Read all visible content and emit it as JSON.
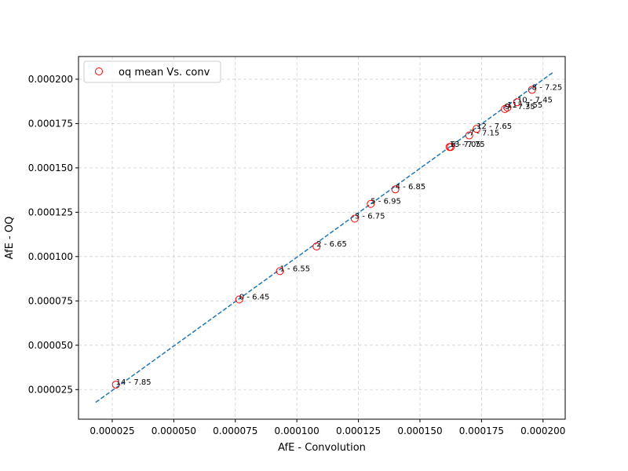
{
  "chart_data": {
    "type": "scatter",
    "xlabel": "AfE - Convolution",
    "ylabel": "AfE - OQ",
    "xlim": [
      1.13e-05,
      0.000209
    ],
    "ylim": [
      8.3e-06,
      0.0002128
    ],
    "xticks": [
      "0.000025",
      "0.000050",
      "0.000075",
      "0.000100",
      "0.000125",
      "0.000150",
      "0.000175",
      "0.000200"
    ],
    "xtick_values": [
      2.5e-05,
      5e-05,
      7.5e-05,
      0.0001,
      0.000125,
      0.00015,
      0.000175,
      0.0002
    ],
    "yticks": [
      "0.000025",
      "0.000050",
      "0.000075",
      "0.000100",
      "0.000125",
      "0.000150",
      "0.000175",
      "0.000200"
    ],
    "ytick_values": [
      2.5e-05,
      5e-05,
      7.5e-05,
      0.0001,
      0.000125,
      0.00015,
      0.000175,
      0.0002
    ],
    "grid": true,
    "legend_position": "top-left",
    "series": [
      {
        "name": "oq mean Vs. conv",
        "marker": "open-circle",
        "color": "#ff0000",
        "points": [
          {
            "x": 7.66e-05,
            "y": 7.58e-05,
            "label": "0 - 6.45"
          },
          {
            "x": 9.31e-05,
            "y": 9.18e-05,
            "label": "1 - 6.55"
          },
          {
            "x": 0.000108,
            "y": 0.0001057,
            "label": "2 - 6.65"
          },
          {
            "x": 0.0001235,
            "y": 0.0001214,
            "label": "3 - 6.75"
          },
          {
            "x": 0.00014,
            "y": 0.0001379,
            "label": "4 - 6.85"
          },
          {
            "x": 0.00013,
            "y": 0.0001297,
            "label": "5 - 6.95"
          },
          {
            "x": 0.0001625,
            "y": 0.0001618,
            "label": "6 - 7.05"
          },
          {
            "x": 0.00017,
            "y": 0.0001683,
            "label": "7 - 7.15"
          },
          {
            "x": 0.0001955,
            "y": 0.000194,
            "label": "8 - 7.25"
          },
          {
            "x": 0.0001845,
            "y": 0.0001832,
            "label": "9 - 7.35"
          },
          {
            "x": 0.0001895,
            "y": 0.000187,
            "label": "10 - 7.45"
          },
          {
            "x": 0.0001855,
            "y": 0.000184,
            "label": "11 - 7.55"
          },
          {
            "x": 0.000173,
            "y": 0.000172,
            "label": "12 - 7.65"
          },
          {
            "x": 0.000162,
            "y": 0.0001618,
            "label": "13 - 7.75"
          },
          {
            "x": 2.65e-05,
            "y": 2.78e-05,
            "label": "14 - 7.85"
          }
        ]
      }
    ],
    "fit_line": {
      "style": "dashed",
      "color": "#1f77b4",
      "x": [
        1.83e-05,
        0.0002045
      ],
      "y": [
        1.78e-05,
        0.0002043
      ]
    }
  }
}
